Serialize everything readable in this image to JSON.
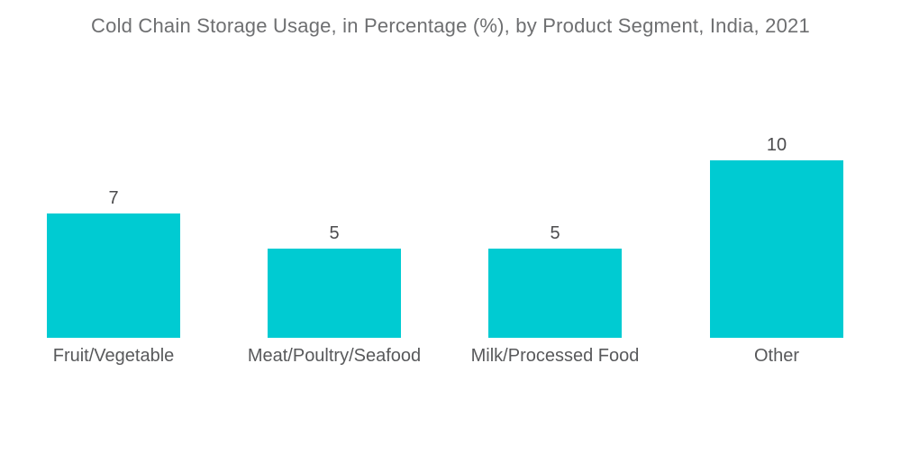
{
  "title": "Cold Chain Storage Usage, in Percentage (%), by Product Segment, India, 2021",
  "colors": {
    "bar": "#00cbd2",
    "title_text": "#6e6f71",
    "value_text": "#4c4c4e",
    "category_text": "#58595b",
    "background": "#ffffff"
  },
  "chart_data": {
    "type": "bar",
    "title": "Cold Chain Storage Usage, in Percentage (%), by Product Segment, India, 2021",
    "categories": [
      "Fruit/Vegetable",
      "Meat/Poultry/Seafood",
      "Milk/Processed Food",
      "Other"
    ],
    "values": [
      7,
      5,
      5,
      10
    ],
    "value_labels": [
      "7",
      "5",
      "5",
      "10"
    ],
    "xlabel": "",
    "ylabel": "",
    "ylim": [
      0,
      10
    ],
    "grid": false,
    "legend": false,
    "axes_shown": false,
    "bar_color": "#00cbd2"
  }
}
